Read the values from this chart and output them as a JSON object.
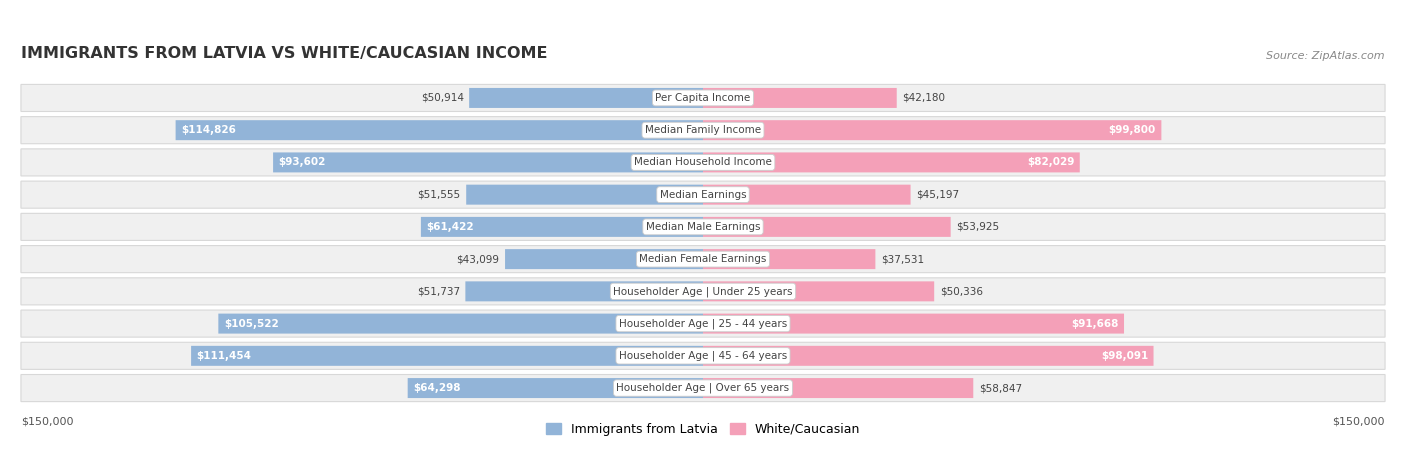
{
  "title": "IMMIGRANTS FROM LATVIA VS WHITE/CAUCASIAN INCOME",
  "source": "Source: ZipAtlas.com",
  "categories": [
    "Per Capita Income",
    "Median Family Income",
    "Median Household Income",
    "Median Earnings",
    "Median Male Earnings",
    "Median Female Earnings",
    "Householder Age | Under 25 years",
    "Householder Age | 25 - 44 years",
    "Householder Age | 45 - 64 years",
    "Householder Age | Over 65 years"
  ],
  "latvia_values": [
    50914,
    114826,
    93602,
    51555,
    61422,
    43099,
    51737,
    105522,
    111454,
    64298
  ],
  "white_values": [
    42180,
    99800,
    82029,
    45197,
    53925,
    37531,
    50336,
    91668,
    98091,
    58847
  ],
  "max_val": 150000,
  "latvia_color": "#92b4d8",
  "latvia_color_dark": "#6a9fc8",
  "white_color": "#f4a0b8",
  "white_color_dark": "#e8607a",
  "row_bg_color": "#f0f0f0",
  "row_border_color": "#d8d8d8",
  "center_label_bg": "#ffffff",
  "center_label_border": "#cccccc",
  "center_label_color": "#444444",
  "title_color": "#333333",
  "legend_latvia_color": "#92b4d8",
  "legend_white_color": "#f4a0b8",
  "bottom_axis_label_left": "$150,000",
  "bottom_axis_label_right": "$150,000",
  "inner_label_threshold": 60000,
  "fig_width": 14.06,
  "fig_height": 4.67,
  "dpi": 100
}
